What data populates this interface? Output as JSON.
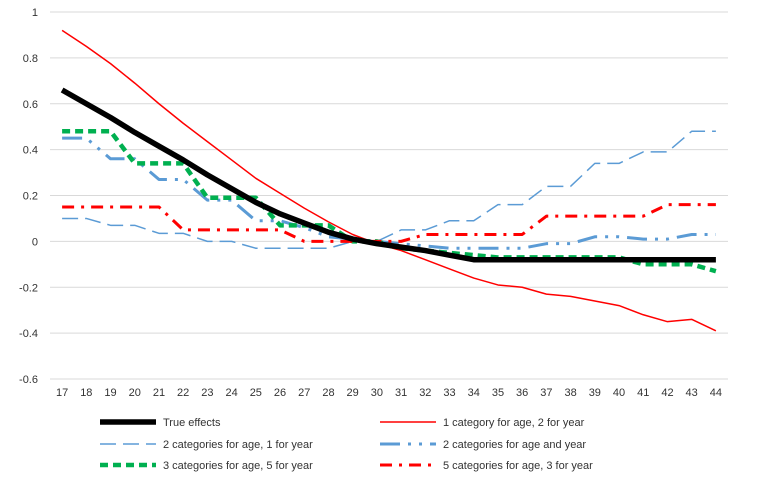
{
  "chart_data": {
    "type": "line",
    "title": "",
    "xlabel": "",
    "ylabel": "",
    "ylim": [
      -0.6,
      1
    ],
    "yticks": [
      1,
      0.8,
      0.6,
      0.4,
      0.2,
      0,
      -0.2,
      -0.4,
      -0.6
    ],
    "ytick_labels": [
      "1",
      "0.8",
      "0.6",
      "0.4",
      "0.2",
      "0",
      "-0.2",
      "-0.4",
      "-0.6"
    ],
    "grid": true,
    "legend_position": "bottom",
    "x": [
      "17",
      "18",
      "19",
      "20",
      "21",
      "22",
      "23",
      "24",
      "25",
      "26",
      "27",
      "28",
      "29",
      "30",
      "31",
      "32",
      "33",
      "34",
      "35",
      "36",
      "37",
      "38",
      "39",
      "40",
      "41",
      "42",
      "43",
      "44"
    ],
    "series": [
      {
        "name": "True effects",
        "color": "#000000",
        "style": "solid-thick",
        "values": [
          0.66,
          0.6,
          0.54,
          0.475,
          0.415,
          0.355,
          0.29,
          0.23,
          0.17,
          0.12,
          0.08,
          0.04,
          0.01,
          -0.01,
          -0.025,
          -0.04,
          -0.06,
          -0.08,
          -0.08,
          -0.08,
          -0.08,
          -0.08,
          -0.08,
          -0.08,
          -0.08,
          -0.08,
          -0.08,
          -0.08
        ]
      },
      {
        "name": "1 category for age, 2 for year",
        "color": "#ff0000",
        "style": "solid-thin",
        "values": [
          0.92,
          0.85,
          0.775,
          0.69,
          0.6,
          0.515,
          0.435,
          0.355,
          0.275,
          0.21,
          0.145,
          0.085,
          0.03,
          -0.01,
          -0.04,
          -0.08,
          -0.12,
          -0.16,
          -0.19,
          -0.2,
          -0.23,
          -0.24,
          -0.26,
          -0.28,
          -0.32,
          -0.35,
          -0.34,
          -0.39
        ]
      },
      {
        "name": "2 categories for age, 1 for year",
        "color": "#5b9bd5",
        "style": "long-dash",
        "values": [
          0.1,
          0.1,
          0.07,
          0.07,
          0.035,
          0.035,
          0.0,
          0.0,
          -0.03,
          -0.03,
          -0.03,
          -0.03,
          -0.0,
          0.0,
          0.05,
          0.05,
          0.09,
          0.09,
          0.16,
          0.16,
          0.24,
          0.24,
          0.34,
          0.34,
          0.39,
          0.39,
          0.48,
          0.48
        ]
      },
      {
        "name": "2 categories for age and year",
        "color": "#5b9bd5",
        "style": "long-dash-dot-dot",
        "values": [
          0.45,
          0.45,
          0.36,
          0.36,
          0.27,
          0.27,
          0.18,
          0.18,
          0.09,
          0.09,
          0.06,
          0.02,
          0.01,
          0.0,
          -0.01,
          -0.02,
          -0.03,
          -0.03,
          -0.03,
          -0.03,
          -0.01,
          -0.01,
          0.02,
          0.02,
          0.01,
          0.01,
          0.03,
          0.03
        ]
      },
      {
        "name": "3 categories for age, 5 for year",
        "color": "#00b050",
        "style": "dash-thick",
        "values": [
          0.48,
          0.48,
          0.48,
          0.34,
          0.34,
          0.34,
          0.19,
          0.19,
          0.19,
          0.07,
          0.07,
          0.07,
          0.0,
          0.0,
          -0.03,
          -0.04,
          -0.05,
          -0.06,
          -0.07,
          -0.07,
          -0.07,
          -0.07,
          -0.07,
          -0.07,
          -0.1,
          -0.1,
          -0.1,
          -0.13
        ]
      },
      {
        "name": "5 categories for age, 3 for year",
        "color": "#ff0000",
        "style": "dash-dot-thick",
        "values": [
          0.15,
          0.15,
          0.15,
          0.15,
          0.15,
          0.05,
          0.05,
          0.05,
          0.05,
          0.05,
          0.0,
          0.0,
          0.0,
          0.0,
          0.0,
          0.03,
          0.03,
          0.03,
          0.03,
          0.03,
          0.11,
          0.11,
          0.11,
          0.11,
          0.11,
          0.16,
          0.16,
          0.16
        ]
      }
    ]
  }
}
